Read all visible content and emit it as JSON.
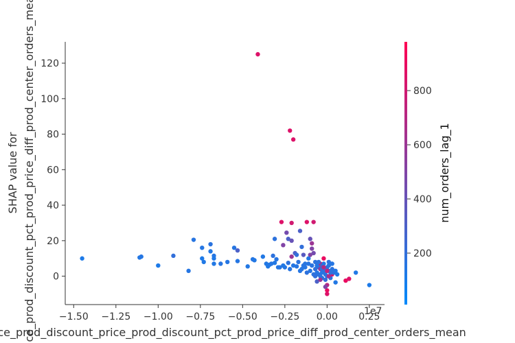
{
  "chart_data": {
    "type": "scatter",
    "xlabel": "price_prod_discount_price_prod_discount_pct_prod_price_diff_prod_center_orders_mean",
    "ylabel_lines": [
      "SHAP value for",
      "price_prod_discount_pct_prod_price_diff_prod_center_orders_mean"
    ],
    "x_offset_label": "1e7",
    "x_ticks": [
      "−1.50",
      "−1.25",
      "−1.00",
      "−0.75",
      "−0.50",
      "−0.25",
      "0.00",
      "0.25"
    ],
    "y_ticks": [
      "0",
      "20",
      "40",
      "60",
      "80",
      "100",
      "120"
    ],
    "xlim": [
      -1.55,
      0.34
    ],
    "ylim": [
      -16,
      132
    ],
    "colorbar": {
      "label": "num_orders_lag_1",
      "ticks": [
        "200",
        "400",
        "600",
        "800"
      ],
      "range": [
        10,
        980
      ],
      "colors": [
        "#008afb",
        "#ff0052"
      ]
    },
    "points": [
      [
        -1.45,
        10,
        120
      ],
      [
        -1.11,
        10.5,
        140
      ],
      [
        -1.1,
        11,
        150
      ],
      [
        -1.0,
        6,
        120
      ],
      [
        -0.91,
        11.5,
        200
      ],
      [
        -0.82,
        3,
        150
      ],
      [
        -0.79,
        20.5,
        160
      ],
      [
        -0.74,
        16,
        150
      ],
      [
        -0.74,
        10,
        120
      ],
      [
        -0.73,
        8,
        130
      ],
      [
        -0.69,
        18,
        170
      ],
      [
        -0.69,
        14,
        140
      ],
      [
        -0.67,
        11.5,
        150
      ],
      [
        -0.67,
        10,
        130
      ],
      [
        -0.67,
        7,
        140
      ],
      [
        -0.63,
        7,
        160
      ],
      [
        -0.59,
        8,
        150
      ],
      [
        -0.55,
        16,
        160
      ],
      [
        -0.53,
        14.5,
        300
      ],
      [
        -0.53,
        8.5,
        150
      ],
      [
        -0.47,
        5.5,
        140
      ],
      [
        -0.44,
        9.5,
        150
      ],
      [
        -0.43,
        9,
        140
      ],
      [
        -0.41,
        125,
        850
      ],
      [
        -0.38,
        11,
        140
      ],
      [
        -0.35,
        5.5,
        130
      ],
      [
        -0.34,
        6.5,
        140
      ],
      [
        -0.33,
        7,
        150
      ],
      [
        -0.32,
        11.5,
        180
      ],
      [
        -0.31,
        21,
        180
      ],
      [
        -0.31,
        7.5,
        140
      ],
      [
        -0.3,
        9.5,
        160
      ],
      [
        -0.29,
        5,
        150
      ],
      [
        -0.27,
        30.5,
        850
      ],
      [
        -0.26,
        17.5,
        500
      ],
      [
        -0.25,
        5,
        150
      ],
      [
        -0.24,
        24.5,
        450
      ],
      [
        -0.23,
        21,
        300
      ],
      [
        -0.23,
        7.5,
        180
      ],
      [
        -0.22,
        82,
        850
      ],
      [
        -0.21,
        30,
        800
      ],
      [
        -0.21,
        20,
        400
      ],
      [
        -0.21,
        11,
        600
      ],
      [
        -0.2,
        77,
        850
      ],
      [
        -0.19,
        13,
        300
      ],
      [
        -0.18,
        5.5,
        160
      ],
      [
        -0.17,
        8,
        170
      ],
      [
        -0.16,
        25.5,
        300
      ],
      [
        -0.15,
        16.5,
        200
      ],
      [
        -0.14,
        12,
        350
      ],
      [
        -0.13,
        5,
        150
      ],
      [
        -0.12,
        30.5,
        850
      ],
      [
        -0.11,
        10,
        140
      ],
      [
        -0.11,
        7,
        160
      ],
      [
        -0.1,
        12,
        500
      ],
      [
        -0.1,
        21,
        400
      ],
      [
        -0.09,
        18.5,
        600
      ],
      [
        -0.09,
        15.5,
        500
      ],
      [
        -0.08,
        30.5,
        800
      ],
      [
        -0.08,
        13,
        450
      ],
      [
        -0.07,
        8,
        180
      ],
      [
        -0.07,
        4,
        200
      ],
      [
        -0.06,
        2,
        150
      ],
      [
        -0.06,
        -3,
        300
      ],
      [
        -0.05,
        5,
        200
      ],
      [
        -0.05,
        1,
        170
      ],
      [
        -0.04,
        7,
        800
      ],
      [
        -0.04,
        4,
        600
      ],
      [
        -0.03,
        6,
        300
      ],
      [
        -0.03,
        -1,
        170
      ],
      [
        -0.03,
        2,
        160
      ],
      [
        -0.02,
        10,
        900
      ],
      [
        -0.02,
        4,
        250
      ],
      [
        -0.01,
        3,
        180
      ],
      [
        -0.01,
        -2,
        200
      ],
      [
        0.0,
        -8,
        900
      ],
      [
        0.0,
        -5,
        700
      ],
      [
        0.0,
        -10,
        850
      ],
      [
        0.0,
        0,
        150
      ],
      [
        0.0,
        5,
        200
      ],
      [
        0.01,
        3,
        170
      ],
      [
        0.01,
        8,
        180
      ],
      [
        0.02,
        7,
        160
      ],
      [
        0.02,
        -1,
        150
      ],
      [
        0.03,
        4,
        170
      ],
      [
        0.03,
        1,
        800
      ],
      [
        0.04,
        2,
        180
      ],
      [
        0.05,
        3,
        150
      ],
      [
        0.05,
        -3.5,
        140
      ],
      [
        0.06,
        1,
        130
      ],
      [
        0.11,
        -2.5,
        900
      ],
      [
        0.13,
        -1.5,
        850
      ],
      [
        0.17,
        2,
        130
      ],
      [
        0.25,
        -5,
        120
      ],
      [
        -0.18,
        12,
        200
      ],
      [
        -0.15,
        4,
        150
      ],
      [
        -0.13,
        7,
        160
      ],
      [
        -0.12,
        2,
        180
      ],
      [
        -0.1,
        3,
        150
      ],
      [
        -0.09,
        6,
        170
      ],
      [
        -0.08,
        1,
        180
      ],
      [
        -0.07,
        0,
        190
      ],
      [
        -0.06,
        6,
        150
      ],
      [
        -0.05,
        8,
        180
      ],
      [
        -0.04,
        0,
        170
      ],
      [
        -0.03,
        4,
        190
      ],
      [
        -0.02,
        7,
        150
      ],
      [
        -0.01,
        1,
        170
      ],
      [
        0.01,
        6,
        160
      ],
      [
        0.02,
        2,
        180
      ],
      [
        0.03,
        7,
        150
      ],
      [
        -0.14,
        6,
        160
      ],
      [
        -0.16,
        3,
        150
      ],
      [
        -0.2,
        6,
        150
      ],
      [
        -0.22,
        4,
        160
      ],
      [
        -0.26,
        6,
        140
      ],
      [
        -0.28,
        5,
        150
      ],
      [
        -0.36,
        7,
        140
      ],
      [
        -0.04,
        -2,
        600
      ],
      [
        -0.02,
        5,
        700
      ],
      [
        0.0,
        3,
        750
      ],
      [
        -0.01,
        -6,
        500
      ],
      [
        0.01,
        0,
        650
      ]
    ]
  }
}
